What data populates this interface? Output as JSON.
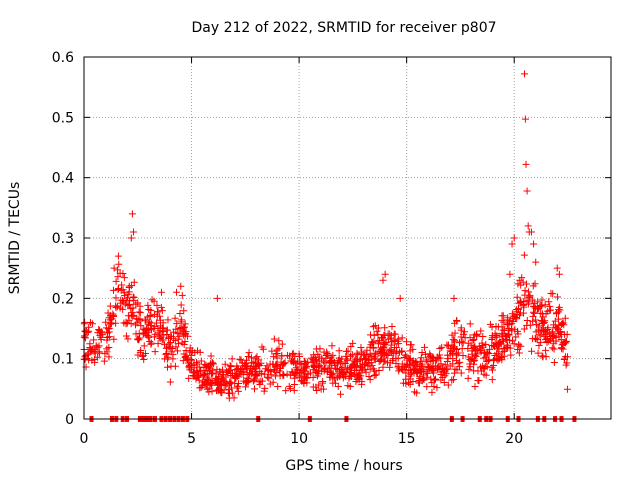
{
  "chart_data": {
    "type": "scatter",
    "title": "Day 212 of 2022, SRMTID for receiver p807",
    "xlabel": "GPS time / hours",
    "ylabel": "SRMTID / TECUs",
    "xlim": [
      0,
      24.5
    ],
    "ylim": [
      0,
      0.6
    ],
    "xticks": [
      0,
      5,
      10,
      15,
      20
    ],
    "yticks": [
      0,
      0.1,
      0.2,
      0.3,
      0.4,
      0.5,
      0.6
    ],
    "grid": true,
    "marker": "+",
    "series_color": "#ff0000",
    "envelope": [
      [
        0.0,
        0.12,
        0.04
      ],
      [
        0.5,
        0.12,
        0.04
      ],
      [
        0.8,
        0.14,
        0.04
      ],
      [
        1.0,
        0.12,
        0.04
      ],
      [
        1.3,
        0.17,
        0.05
      ],
      [
        1.6,
        0.21,
        0.05
      ],
      [
        2.0,
        0.18,
        0.05
      ],
      [
        2.3,
        0.21,
        0.06
      ],
      [
        2.7,
        0.13,
        0.04
      ],
      [
        3.0,
        0.15,
        0.04
      ],
      [
        3.5,
        0.15,
        0.04
      ],
      [
        4.0,
        0.12,
        0.04
      ],
      [
        4.5,
        0.15,
        0.05
      ],
      [
        5.0,
        0.09,
        0.03
      ],
      [
        5.5,
        0.075,
        0.025
      ],
      [
        6.0,
        0.07,
        0.025
      ],
      [
        6.5,
        0.065,
        0.025
      ],
      [
        7.0,
        0.07,
        0.025
      ],
      [
        8.0,
        0.085,
        0.03
      ],
      [
        9.0,
        0.09,
        0.03
      ],
      [
        10.0,
        0.08,
        0.03
      ],
      [
        11.0,
        0.085,
        0.03
      ],
      [
        12.0,
        0.085,
        0.03
      ],
      [
        13.0,
        0.09,
        0.03
      ],
      [
        13.7,
        0.11,
        0.04
      ],
      [
        14.0,
        0.12,
        0.04
      ],
      [
        14.5,
        0.11,
        0.04
      ],
      [
        15.0,
        0.09,
        0.03
      ],
      [
        15.5,
        0.08,
        0.03
      ],
      [
        16.0,
        0.085,
        0.03
      ],
      [
        16.5,
        0.08,
        0.03
      ],
      [
        17.0,
        0.11,
        0.04
      ],
      [
        17.5,
        0.12,
        0.04
      ],
      [
        18.0,
        0.11,
        0.04
      ],
      [
        18.5,
        0.1,
        0.035
      ],
      [
        19.0,
        0.11,
        0.04
      ],
      [
        19.5,
        0.13,
        0.04
      ],
      [
        20.0,
        0.16,
        0.05
      ],
      [
        20.5,
        0.2,
        0.06
      ],
      [
        21.0,
        0.17,
        0.05
      ],
      [
        21.5,
        0.15,
        0.05
      ],
      [
        22.0,
        0.16,
        0.05
      ],
      [
        22.5,
        0.1,
        0.04
      ]
    ],
    "outliers": [
      [
        0.3,
        0.16
      ],
      [
        1.4,
        0.25
      ],
      [
        1.6,
        0.27
      ],
      [
        2.2,
        0.3
      ],
      [
        2.25,
        0.34
      ],
      [
        2.3,
        0.31
      ],
      [
        3.6,
        0.21
      ],
      [
        4.3,
        0.21
      ],
      [
        4.5,
        0.22
      ],
      [
        6.2,
        0.2
      ],
      [
        13.9,
        0.23
      ],
      [
        14.0,
        0.24
      ],
      [
        14.7,
        0.2
      ],
      [
        17.2,
        0.2
      ],
      [
        19.8,
        0.24
      ],
      [
        19.9,
        0.29
      ],
      [
        20.0,
        0.3
      ],
      [
        20.48,
        0.572
      ],
      [
        20.52,
        0.497
      ],
      [
        20.55,
        0.422
      ],
      [
        20.6,
        0.378
      ],
      [
        20.65,
        0.32
      ],
      [
        20.7,
        0.31
      ],
      [
        20.8,
        0.31
      ],
      [
        20.9,
        0.29
      ],
      [
        21.0,
        0.26
      ],
      [
        22.0,
        0.25
      ],
      [
        22.1,
        0.24
      ]
    ],
    "zero_points": [
      0.35,
      1.3,
      1.5,
      1.8,
      2.0,
      2.6,
      2.7,
      2.8,
      2.9,
      3.0,
      3.1,
      3.3,
      3.6,
      3.8,
      4.0,
      4.2,
      4.4,
      4.6,
      4.8,
      8.1,
      10.5,
      12.2,
      17.1,
      17.6,
      18.4,
      18.7,
      18.9,
      19.7,
      20.2,
      21.1,
      21.4,
      21.9,
      22.2,
      22.8
    ]
  }
}
